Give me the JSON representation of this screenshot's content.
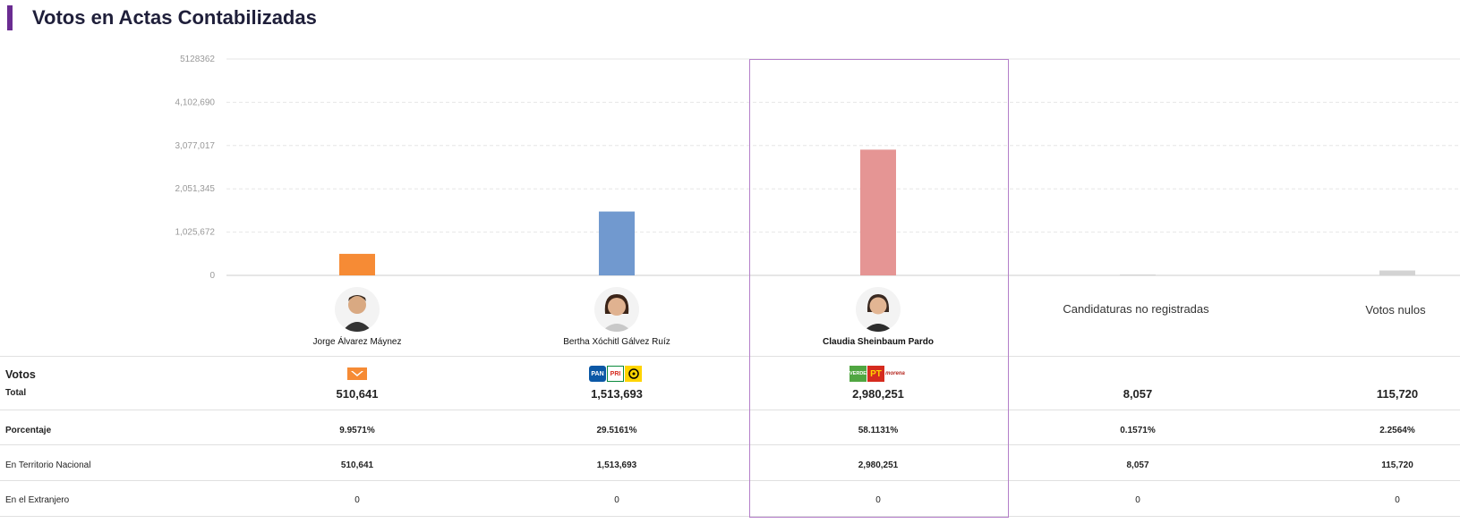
{
  "page_title": "Votos en Actas Contabilizadas",
  "colors": {
    "accent": "#6a2c91",
    "highlight": "#b47fc9",
    "bars": [
      "#f68b35",
      "#7199cf",
      "#e59594",
      "#d3d3d3",
      "#d3d3d3"
    ]
  },
  "chart_data": {
    "type": "bar",
    "categories": [
      "Jorge Álvarez Máynez",
      "Bertha Xóchitl Gálvez Ruíz",
      "Claudia Sheinbaum Pardo",
      "Candidaturas no registradas",
      "Votos nulos"
    ],
    "values": [
      510641,
      1513693,
      2980251,
      8057,
      115720
    ],
    "ylim": [
      0,
      5128362
    ],
    "yticks": [
      "0",
      "1,025,672",
      "2,051,345",
      "3,077,017",
      "4,102,690",
      "5128362"
    ],
    "grid": true
  },
  "candidates": [
    {
      "name": "Jorge Álvarez Máynez",
      "icon": "candidate-photo",
      "logos": [
        "movimiento-ciudadano-logo"
      ]
    },
    {
      "name": "Bertha Xóchitl Gálvez Ruíz",
      "icon": "candidate-photo",
      "logos": [
        "pan-logo",
        "pri-logo",
        "prd-logo"
      ]
    },
    {
      "name": "Claudia Sheinbaum Pardo",
      "icon": "candidate-photo",
      "logos": [
        "verde-logo",
        "pt-logo",
        "morena-logo"
      ]
    },
    {
      "name": "Candidaturas no registradas"
    },
    {
      "name": "Votos nulos"
    }
  ],
  "table": {
    "votos_label": "Votos",
    "total_label": "Total",
    "totals": [
      "510,641",
      "1,513,693",
      "2,980,251",
      "8,057",
      "115,720"
    ],
    "porcentaje_label": "Porcentaje",
    "porcentajes": [
      "9.9571%",
      "29.5161%",
      "58.1131%",
      "0.1571%",
      "2.2564%"
    ],
    "nacional_label": "En Territorio Nacional",
    "nacional": [
      "510,641",
      "1,513,693",
      "2,980,251",
      "8,057",
      "115,720"
    ],
    "extranjero_label": "En el Extranjero",
    "extranjero": [
      "0",
      "0",
      "0",
      "0",
      "0"
    ]
  },
  "logo_text": {
    "pan": "PAN",
    "pri": "PRI",
    "verde": "VERDE",
    "pt": "PT",
    "morena": "morena"
  }
}
